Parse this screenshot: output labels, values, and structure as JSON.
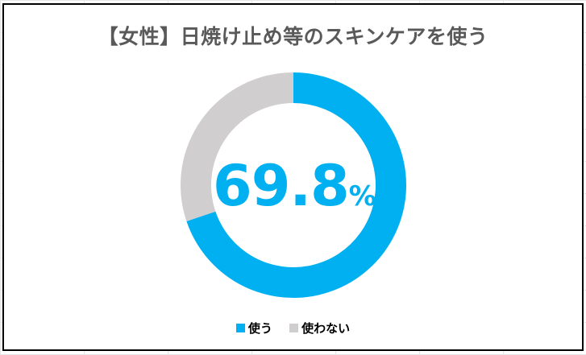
{
  "chart_data": {
    "type": "pie",
    "subtype": "donut",
    "title": "【女性】日焼け止め等のスキンケアを使う",
    "center_label": {
      "value": "69.8",
      "unit": "%"
    },
    "categories": [
      "使う",
      "使わない"
    ],
    "values": [
      69.8,
      30.2
    ],
    "colors": [
      "#00B0F0",
      "#D0CECE"
    ],
    "legend_position": "bottom",
    "start_angle": "top",
    "direction": "clockwise"
  }
}
